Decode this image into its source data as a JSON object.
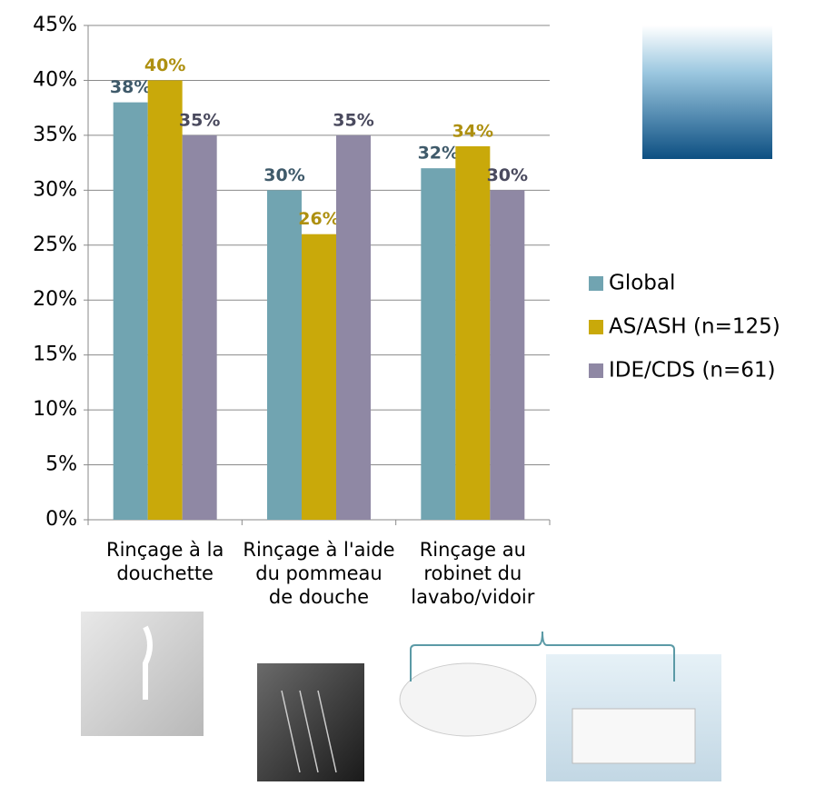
{
  "chart_data": {
    "type": "bar",
    "categories": [
      "Rinçage à la douchette",
      "Rinçage à l'aide du pommeau de douche",
      "Rinçage au robinet du lavabo/vidoir"
    ],
    "series": [
      {
        "name": "Global",
        "color": "#71a4b1",
        "label_color": "#3f5a6a",
        "values": [
          38,
          30,
          32
        ],
        "value_labels": [
          "38%",
          "30%",
          "32%"
        ]
      },
      {
        "name": "AS/ASH (n=125)",
        "color": "#c9a90a",
        "label_color": "#ae9010",
        "values": [
          40,
          26,
          34
        ],
        "value_labels": [
          "40%",
          "26%",
          "34%"
        ]
      },
      {
        "name": "IDE/CDS (n=61)",
        "color": "#8f88a4",
        "label_color": "#4a4a5e",
        "values": [
          35,
          35,
          30
        ],
        "value_labels": [
          "35%",
          "35%",
          "30%"
        ]
      }
    ],
    "ylim": [
      0,
      45
    ],
    "yticks": [
      {
        "value": 0,
        "label": "0%"
      },
      {
        "value": 5,
        "label": "5%"
      },
      {
        "value": 10,
        "label": "10%"
      },
      {
        "value": 15,
        "label": "15%"
      },
      {
        "value": 20,
        "label": "20%"
      },
      {
        "value": 25,
        "label": "25%"
      },
      {
        "value": 30,
        "label": "30%"
      },
      {
        "value": 35,
        "label": "35%"
      },
      {
        "value": 40,
        "label": "40%"
      },
      {
        "value": 45,
        "label": "45%"
      }
    ],
    "grid": true,
    "legend": "right"
  }
}
